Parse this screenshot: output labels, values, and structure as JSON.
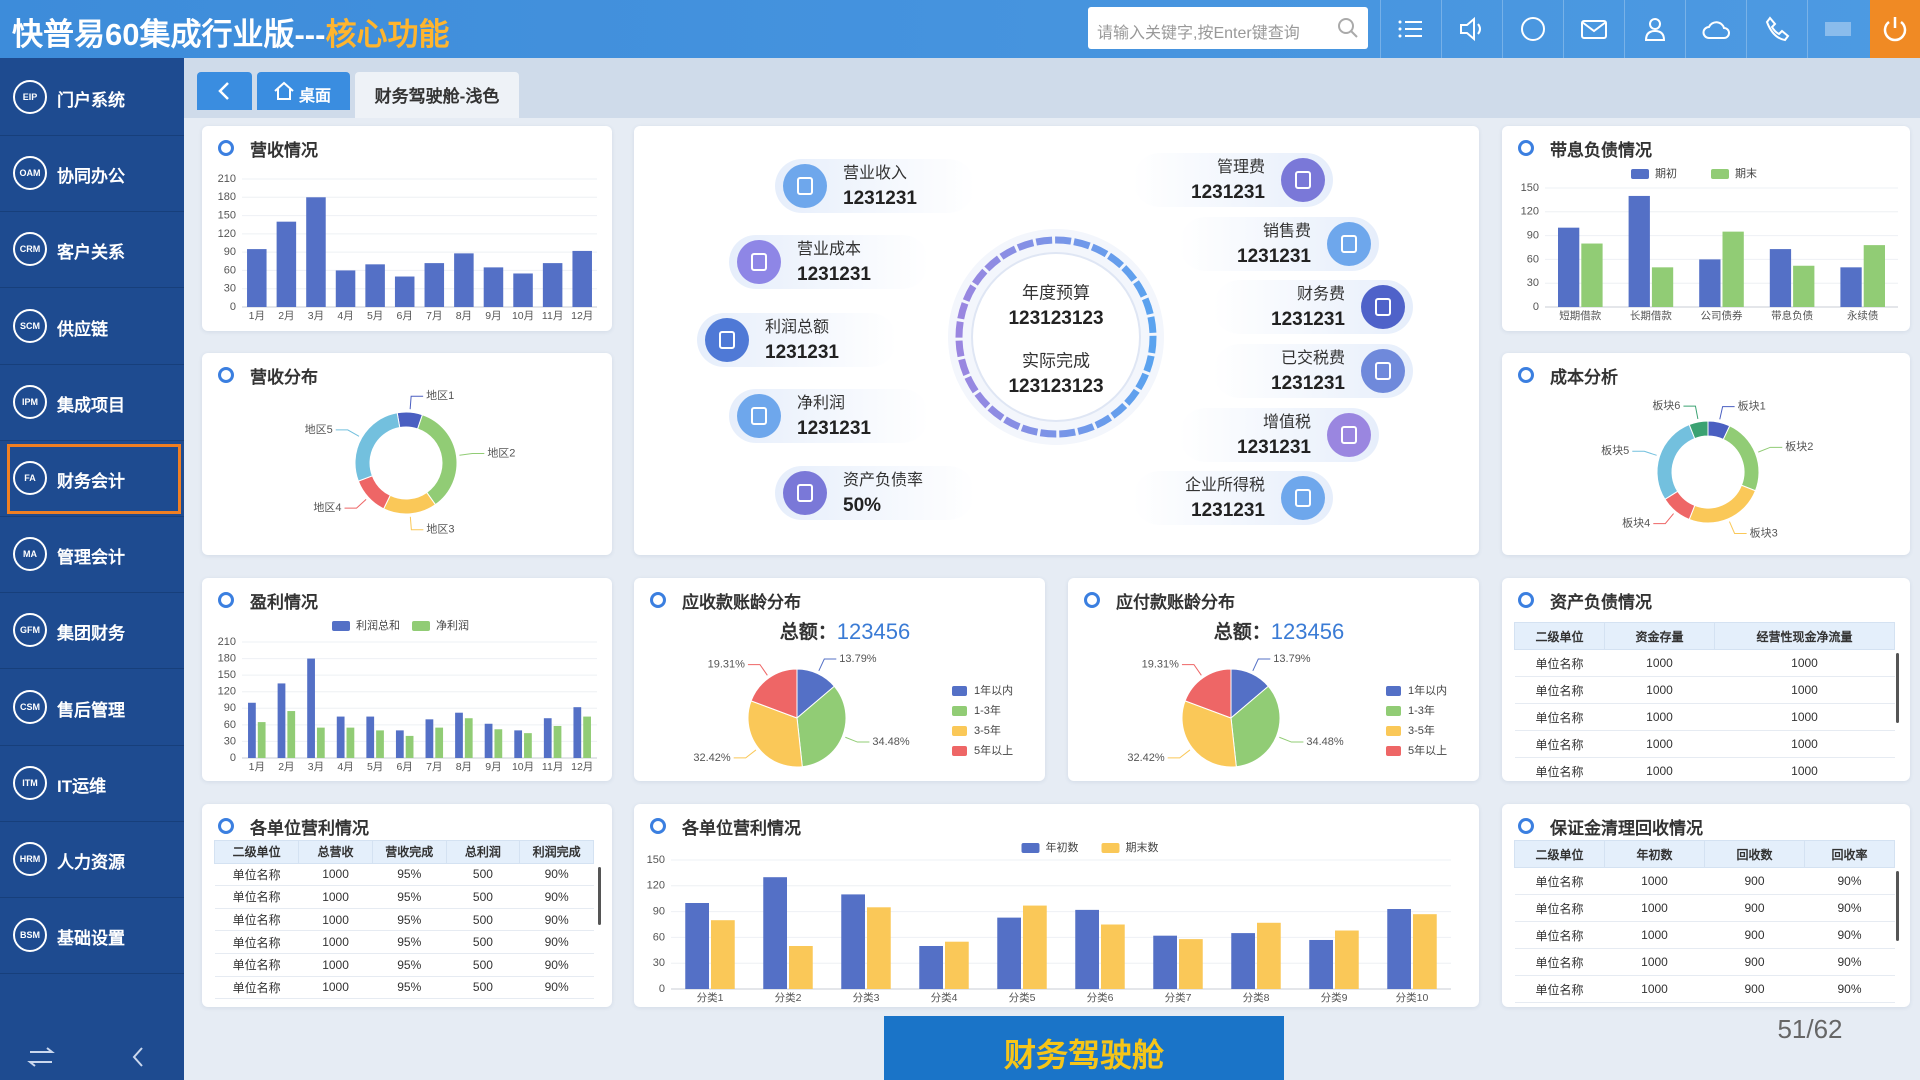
{
  "header": {
    "title": "快普易60集成行业版---",
    "highlight": "核心功能",
    "search_placeholder": "请输入关键字,按Enter键查询"
  },
  "sidebar": [
    {
      "code": "EIP",
      "label": "门户系统"
    },
    {
      "code": "OAM",
      "label": "协同办公"
    },
    {
      "code": "CRM",
      "label": "客户关系"
    },
    {
      "code": "SCM",
      "label": "供应链"
    },
    {
      "code": "IPM",
      "label": "集成项目"
    },
    {
      "code": "FA",
      "label": "财务会计"
    },
    {
      "code": "MA",
      "label": "管理会计"
    },
    {
      "code": "GFM",
      "label": "集团财务"
    },
    {
      "code": "CSM",
      "label": "售后管理"
    },
    {
      "code": "ITM",
      "label": "IT运维"
    },
    {
      "code": "HRM",
      "label": "人力资源"
    },
    {
      "code": "BSM",
      "label": "基础设置"
    }
  ],
  "tabs": [
    "桌面",
    "财务驾驶舱-浅色"
  ],
  "chart_data": [
    {
      "type": "bar",
      "title": "营收情况",
      "categories": [
        "1月",
        "2月",
        "3月",
        "4月",
        "5月",
        "6月",
        "7月",
        "8月",
        "9月",
        "10月",
        "11月",
        "12月"
      ],
      "values": [
        95,
        140,
        180,
        60,
        70,
        50,
        72,
        88,
        65,
        55,
        72,
        92
      ],
      "color": "#5470c6",
      "ylim": [
        0,
        210
      ],
      "yticks": [
        0,
        30,
        60,
        90,
        120,
        150,
        180,
        210
      ]
    },
    {
      "type": "donut",
      "title": "营收分布",
      "categories": [
        "地区1",
        "地区2",
        "地区3",
        "地区4",
        "地区5"
      ],
      "values": [
        8,
        35,
        17,
        12,
        28
      ],
      "colors": [
        "#4a5fc1",
        "#91cc75",
        "#fac858",
        "#ee6666",
        "#73c0de"
      ]
    },
    {
      "type": "bar",
      "title": "带息负债情况",
      "categories": [
        "短期借款",
        "长期借款",
        "公司债券",
        "带息负债",
        "永续债"
      ],
      "series": [
        {
          "name": "期初",
          "color": "#5470c6",
          "values": [
            100,
            140,
            60,
            73,
            50
          ]
        },
        {
          "name": "期末",
          "color": "#91cc75",
          "values": [
            80,
            50,
            95,
            52,
            78
          ]
        }
      ],
      "ylim": [
        0,
        150
      ],
      "yticks": [
        0,
        30,
        60,
        90,
        120,
        150
      ]
    },
    {
      "type": "donut",
      "title": "成本分析",
      "categories": [
        "板块1",
        "板块2",
        "板块3",
        "板块4",
        "板块5",
        "板块6"
      ],
      "values": [
        7,
        24,
        25,
        10,
        28,
        6
      ],
      "colors": [
        "#4a5fc1",
        "#91cc75",
        "#fac858",
        "#ee6666",
        "#73c0de",
        "#3ba272"
      ]
    },
    {
      "type": "bar",
      "title": "盈利情况",
      "categories": [
        "1月",
        "2月",
        "3月",
        "4月",
        "5月",
        "6月",
        "7月",
        "8月",
        "9月",
        "10月",
        "11月",
        "12月"
      ],
      "series": [
        {
          "name": "利润总和",
          "color": "#5470c6",
          "values": [
            100,
            135,
            180,
            75,
            75,
            50,
            70,
            82,
            62,
            50,
            72,
            92
          ]
        },
        {
          "name": "净利润",
          "color": "#91cc75",
          "values": [
            65,
            85,
            55,
            55,
            50,
            40,
            55,
            72,
            52,
            45,
            58,
            75
          ]
        }
      ],
      "ylim": [
        0,
        210
      ],
      "yticks": [
        0,
        30,
        60,
        90,
        120,
        150,
        180,
        210
      ]
    },
    {
      "type": "pie",
      "title": "应收款账龄分布",
      "total_label": "总额：",
      "total": 123456,
      "categories": [
        "1年以内",
        "1-3年",
        "3-5年",
        "5年以上"
      ],
      "values": [
        13.79,
        34.48,
        32.42,
        19.31
      ],
      "value_labels": [
        "13.79%",
        "34.48%",
        "32.42%",
        "19.31%"
      ],
      "colors": [
        "#5470c6",
        "#91cc75",
        "#fac858",
        "#ee6666"
      ]
    },
    {
      "type": "pie",
      "title": "应付款账龄分布",
      "total_label": "总额：",
      "total": 123456,
      "categories": [
        "1年以内",
        "1-3年",
        "3-5年",
        "5年以上"
      ],
      "values": [
        13.79,
        34.48,
        32.42,
        19.31
      ],
      "value_labels": [
        "13.79%",
        "34.48%",
        "32.42%",
        "19.31%"
      ],
      "colors": [
        "#5470c6",
        "#91cc75",
        "#fac858",
        "#ee6666"
      ]
    },
    {
      "type": "bar",
      "title": "各单位营利情况",
      "categories": [
        "分类1",
        "分类2",
        "分类3",
        "分类4",
        "分类5",
        "分类6",
        "分类7",
        "分类8",
        "分类9",
        "分类10"
      ],
      "series": [
        {
          "name": "年初数",
          "color": "#5470c6",
          "values": [
            100,
            130,
            110,
            50,
            83,
            92,
            62,
            65,
            57,
            93
          ]
        },
        {
          "name": "期末数",
          "color": "#fac858",
          "values": [
            80,
            50,
            95,
            55,
            97,
            75,
            58,
            77,
            68,
            87
          ]
        }
      ],
      "ylim": [
        0,
        150
      ],
      "yticks": [
        0,
        30,
        60,
        90,
        120,
        150
      ]
    }
  ],
  "tables": [
    {
      "title": "资产负债情况",
      "columns": [
        "二级单位",
        "资金存量",
        "经营性现金净流量"
      ],
      "rows": [
        [
          "单位名称",
          1000,
          1000
        ],
        [
          "单位名称",
          1000,
          1000
        ],
        [
          "单位名称",
          1000,
          1000
        ],
        [
          "单位名称",
          1000,
          1000
        ],
        [
          "单位名称",
          1000,
          1000
        ]
      ]
    },
    {
      "title": "各单位营利情况",
      "columns": [
        "二级单位",
        "总营收",
        "营收完成",
        "总利润",
        "利润完成"
      ],
      "rows": [
        [
          "单位名称",
          1000,
          "95%",
          500,
          "90%"
        ],
        [
          "单位名称",
          1000,
          "95%",
          500,
          "90%"
        ],
        [
          "单位名称",
          1000,
          "95%",
          500,
          "90%"
        ],
        [
          "单位名称",
          1000,
          "95%",
          500,
          "90%"
        ],
        [
          "单位名称",
          1000,
          "95%",
          500,
          "90%"
        ],
        [
          "单位名称",
          1000,
          "95%",
          500,
          "90%"
        ]
      ]
    },
    {
      "title": "保证金清理回收情况",
      "columns": [
        "二级单位",
        "年初数",
        "回收数",
        "回收率"
      ],
      "rows": [
        [
          "单位名称",
          1000,
          900,
          "90%"
        ],
        [
          "单位名称",
          1000,
          900,
          "90%"
        ],
        [
          "单位名称",
          1000,
          900,
          "90%"
        ],
        [
          "单位名称",
          1000,
          900,
          "90%"
        ],
        [
          "单位名称",
          1000,
          900,
          "90%"
        ]
      ]
    }
  ],
  "kpi": {
    "center": [
      {
        "label": "年度预算",
        "value": 123123123
      },
      {
        "label": "实际完成",
        "value": 123123123
      }
    ],
    "items": [
      {
        "label": "营业收入",
        "value": 1231231
      },
      {
        "label": "营业成本",
        "value": 1231231
      },
      {
        "label": "利润总额",
        "value": 1231231
      },
      {
        "label": "净利润",
        "value": 1231231
      },
      {
        "label": "资产负债率",
        "value": "50%"
      },
      {
        "label": "管理费",
        "value": 1231231
      },
      {
        "label": "销售费",
        "value": 1231231
      },
      {
        "label": "财务费",
        "value": 1231231
      },
      {
        "label": "已交税费",
        "value": 1231231
      },
      {
        "label": "增值税",
        "value": 1231231
      },
      {
        "label": "企业所得税",
        "value": 1231231
      }
    ]
  },
  "footer": {
    "caption": "财务驾驶舱",
    "page": "51/62"
  }
}
